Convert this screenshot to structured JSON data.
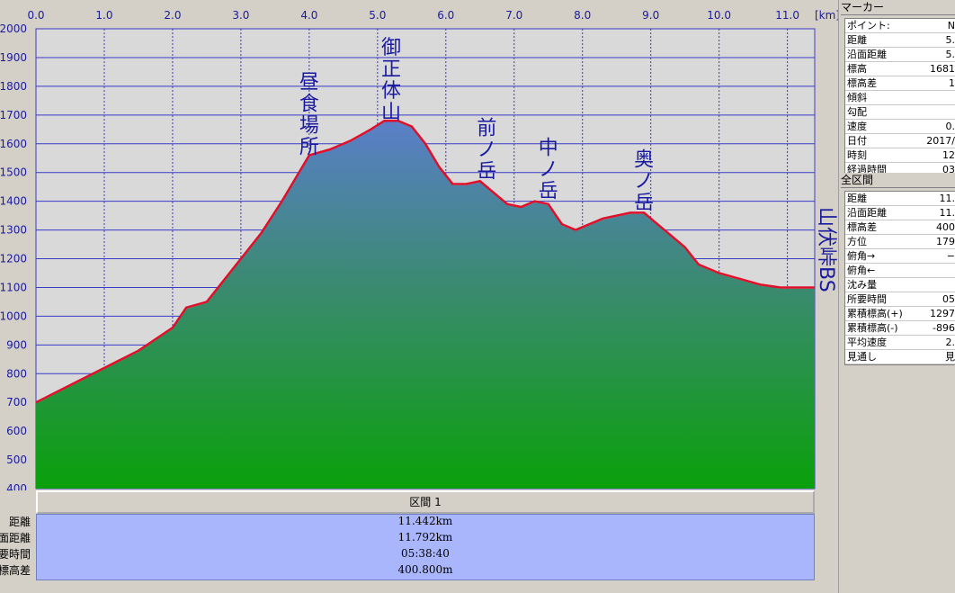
{
  "chart_data": {
    "type": "area",
    "x_unit_label": "[km]",
    "x_ticks": [
      "0.0",
      "1.0",
      "2.0",
      "3.0",
      "4.0",
      "5.0",
      "6.0",
      "7.0",
      "8.0",
      "9.0",
      "10.0",
      "11.0"
    ],
    "y_ticks": [
      "2000",
      "1900",
      "1800",
      "1700",
      "1600",
      "1500",
      "1400",
      "1300",
      "1200",
      "1100",
      "1000",
      "900",
      "800",
      "700",
      "600",
      "500",
      "400"
    ],
    "xlim": [
      0,
      11.4
    ],
    "ylim": [
      400,
      2000
    ],
    "grid": true,
    "series": [
      {
        "color": "#e0102a",
        "x": [
          0.0,
          0.5,
          1.0,
          1.5,
          2.0,
          2.2,
          2.5,
          2.8,
          3.0,
          3.3,
          3.6,
          4.0,
          4.3,
          4.6,
          4.9,
          5.1,
          5.3,
          5.5,
          5.7,
          5.9,
          6.1,
          6.3,
          6.5,
          6.7,
          6.9,
          7.1,
          7.3,
          7.5,
          7.7,
          7.9,
          8.1,
          8.3,
          8.5,
          8.7,
          8.9,
          9.1,
          9.3,
          9.5,
          9.7,
          10.0,
          10.3,
          10.6,
          10.9,
          11.1,
          11.4
        ],
        "values": [
          700,
          760,
          820,
          880,
          960,
          1030,
          1050,
          1140,
          1200,
          1290,
          1400,
          1560,
          1580,
          1610,
          1650,
          1680,
          1680,
          1660,
          1600,
          1520,
          1460,
          1460,
          1470,
          1430,
          1390,
          1380,
          1400,
          1390,
          1320,
          1300,
          1320,
          1340,
          1350,
          1360,
          1360,
          1320,
          1280,
          1240,
          1180,
          1150,
          1130,
          1110,
          1100,
          1100,
          1100
        ]
      }
    ],
    "peaks": [
      {
        "label": "昼食場所",
        "x": 4.0,
        "y": 1560
      },
      {
        "label": "御正体山",
        "x": 5.2,
        "y": 1681
      },
      {
        "label": "前ノ岳",
        "x": 6.6,
        "y": 1470
      },
      {
        "label": "中ノ岳",
        "x": 7.5,
        "y": 1400
      },
      {
        "label": "奥ノ岳",
        "x": 8.9,
        "y": 1360
      }
    ],
    "end_label": "山伏峠BS"
  },
  "section_bar": {
    "label": "区間 1"
  },
  "summary": {
    "rows": [
      {
        "label": "距離",
        "value": "11.442km"
      },
      {
        "label": "面距離",
        "value": "11.792km"
      },
      {
        "label": "要時間",
        "value": "05:38:40"
      },
      {
        "label": "標高差",
        "value": "400.800m"
      }
    ]
  },
  "marker_panel": {
    "title": "マーカー",
    "rows": [
      {
        "key": "ポイント:",
        "value": "N"
      },
      {
        "key": "距離",
        "value": "5."
      },
      {
        "key": "沿面距離",
        "value": "5."
      },
      {
        "key": "標高",
        "value": "1681"
      },
      {
        "key": "標高差",
        "value": "1"
      },
      {
        "key": "傾斜",
        "value": ""
      },
      {
        "key": "勾配",
        "value": ""
      },
      {
        "key": "速度",
        "value": "0."
      },
      {
        "key": "日付",
        "value": "2017/"
      },
      {
        "key": "時刻",
        "value": "12"
      },
      {
        "key": "経過時間",
        "value": "03"
      }
    ]
  },
  "full_panel": {
    "title": "全区間",
    "rows": [
      {
        "key": "距離",
        "value": "11."
      },
      {
        "key": "沿面距離",
        "value": "11."
      },
      {
        "key": "標高差",
        "value": "400"
      },
      {
        "key": "方位",
        "value": "179"
      },
      {
        "key": "俯角→",
        "value": "−"
      },
      {
        "key": "俯角←",
        "value": ""
      },
      {
        "key": "沈み量",
        "value": ""
      },
      {
        "key": "所要時間",
        "value": "05"
      },
      {
        "key": "累積標高(+)",
        "value": "1297"
      },
      {
        "key": "累積標高(-)",
        "value": "-896"
      },
      {
        "key": "平均速度",
        "value": "2."
      },
      {
        "key": "見通し",
        "value": "見"
      }
    ]
  }
}
